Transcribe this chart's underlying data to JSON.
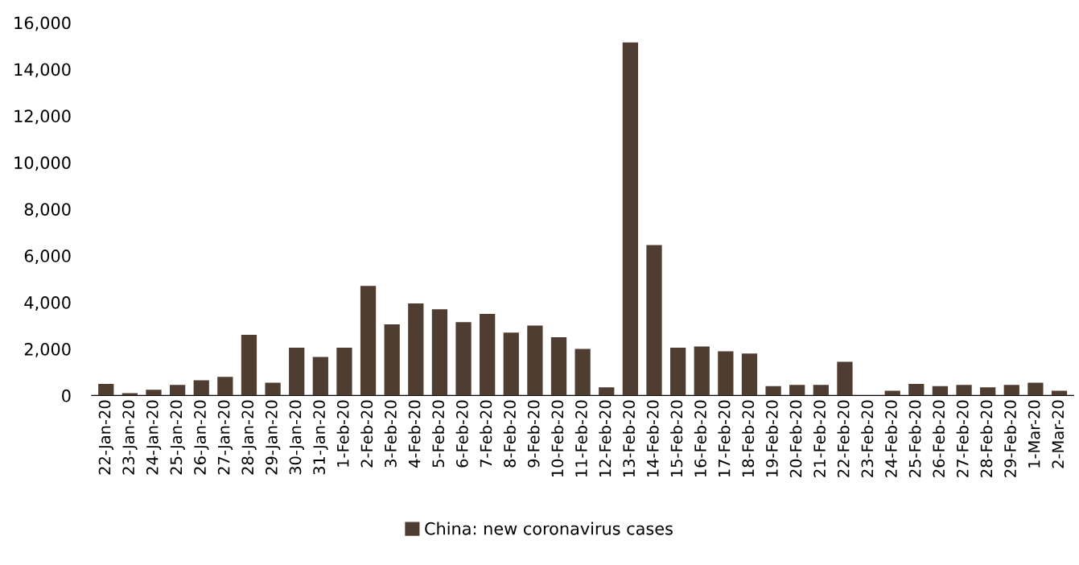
{
  "chart_data": {
    "type": "bar",
    "categories": [
      "22-Jan-20",
      "23-Jan-20",
      "24-Jan-20",
      "25-Jan-20",
      "26-Jan-20",
      "27-Jan-20",
      "28-Jan-20",
      "29-Jan-20",
      "30-Jan-20",
      "31-Jan-20",
      "1-Feb-20",
      "2-Feb-20",
      "3-Feb-20",
      "4-Feb-20",
      "5-Feb-20",
      "6-Feb-20",
      "7-Feb-20",
      "8-Feb-20",
      "9-Feb-20",
      "10-Feb-20",
      "11-Feb-20",
      "12-Feb-20",
      "13-Feb-20",
      "14-Feb-20",
      "15-Feb-20",
      "16-Feb-20",
      "17-Feb-20",
      "18-Feb-20",
      "19-Feb-20",
      "20-Feb-20",
      "21-Feb-20",
      "22-Feb-20",
      "23-Feb-20",
      "24-Feb-20",
      "25-Feb-20",
      "26-Feb-20",
      "27-Feb-20",
      "28-Feb-20",
      "29-Feb-20",
      "1-Mar-20",
      "2-Mar-20"
    ],
    "series": [
      {
        "name": "China: new coronavirus cases",
        "color": "#4f3d31",
        "values": [
          500,
          100,
          250,
          450,
          650,
          800,
          2600,
          550,
          2050,
          1650,
          2050,
          4700,
          3050,
          3950,
          3700,
          3150,
          3500,
          2700,
          3000,
          2500,
          2000,
          350,
          15150,
          6450,
          2050,
          2100,
          1900,
          1800,
          400,
          450,
          450,
          1450,
          0,
          200,
          500,
          400,
          450,
          350,
          450,
          550,
          200
        ]
      }
    ],
    "ylim": [
      0,
      16000
    ],
    "yticks": [
      {
        "value": 0,
        "label": "0"
      },
      {
        "value": 2000,
        "label": "2,000"
      },
      {
        "value": 4000,
        "label": "4,000"
      },
      {
        "value": 6000,
        "label": "6,000"
      },
      {
        "value": 8000,
        "label": "8,000"
      },
      {
        "value": 10000,
        "label": "10,000"
      },
      {
        "value": 12000,
        "label": "12,000"
      },
      {
        "value": 14000,
        "label": "14,000"
      },
      {
        "value": 16000,
        "label": "16,000"
      }
    ],
    "grid": false,
    "legend": "bottom"
  }
}
